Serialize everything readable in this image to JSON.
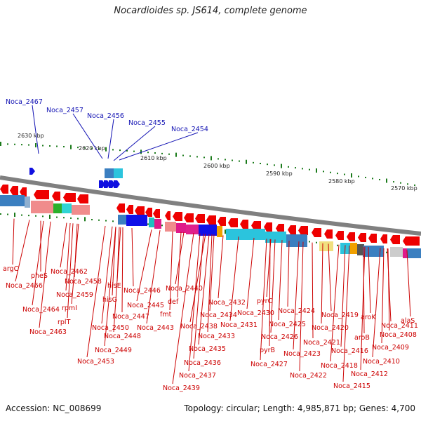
{
  "title": "Nocardioides sp. JS614, complete genome",
  "footer": {
    "accession": "Accession: NC_008699",
    "summary": "Topology: circular; Length: 4,985,871 bp; Genes: 4,700"
  },
  "colors": {
    "backbone": "#808080",
    "forward_gene": "#1010e0",
    "reverse_gene": "#ee0000",
    "label_blue": "#1414b4",
    "label_red": "#cc0000",
    "tick_green": "#1a7a1a"
  },
  "kbp_labels": [
    "2630 kbp",
    "2620 kbp",
    "2610 kbp",
    "2600 kbp",
    "2590 kbp",
    "2580 kbp",
    "2570 kbp"
  ],
  "forward_labels": [
    "Noca_2467",
    "Noca_2457",
    "Noca_2456",
    "Noca_2455",
    "Noca_2454"
  ],
  "reverse_labels": [
    "argC",
    "pheS",
    "Noca_2466",
    "Noca_2462",
    "Noca_2458",
    "Noca_2464",
    "Noca_2459",
    "rpmI",
    "rplT",
    "Noca_2463",
    "hisE",
    "hisG",
    "Noca_2446",
    "Noca_2447",
    "Noca_2450",
    "Noca_2448",
    "Noca_2449",
    "Noca_2453",
    "Noca_2440",
    "def",
    "Noca_2445",
    "fmt",
    "Noca_2443",
    "Noca_2432",
    "Noca_2434",
    "Noca_2438",
    "Noca_2433",
    "Noca_2435",
    "Noca_2436",
    "Noca_2437",
    "Noca_2439",
    "pyrC",
    "Noca_2430",
    "Noca_2431",
    "Noca_2424",
    "Noca_2425",
    "Noca_2426",
    "pyrB",
    "Noca_2427",
    "Noca_2421",
    "Noca_2423",
    "Noca_2422",
    "Noca_2419",
    "Noca_2420",
    "aroK",
    "Noca_2411",
    "alaS",
    "aroB",
    "Noca_2408",
    "Noca_2416",
    "Noca_2409",
    "Noca_2418",
    "Noca_2410",
    "Noca_2412",
    "Noca_2415"
  ]
}
